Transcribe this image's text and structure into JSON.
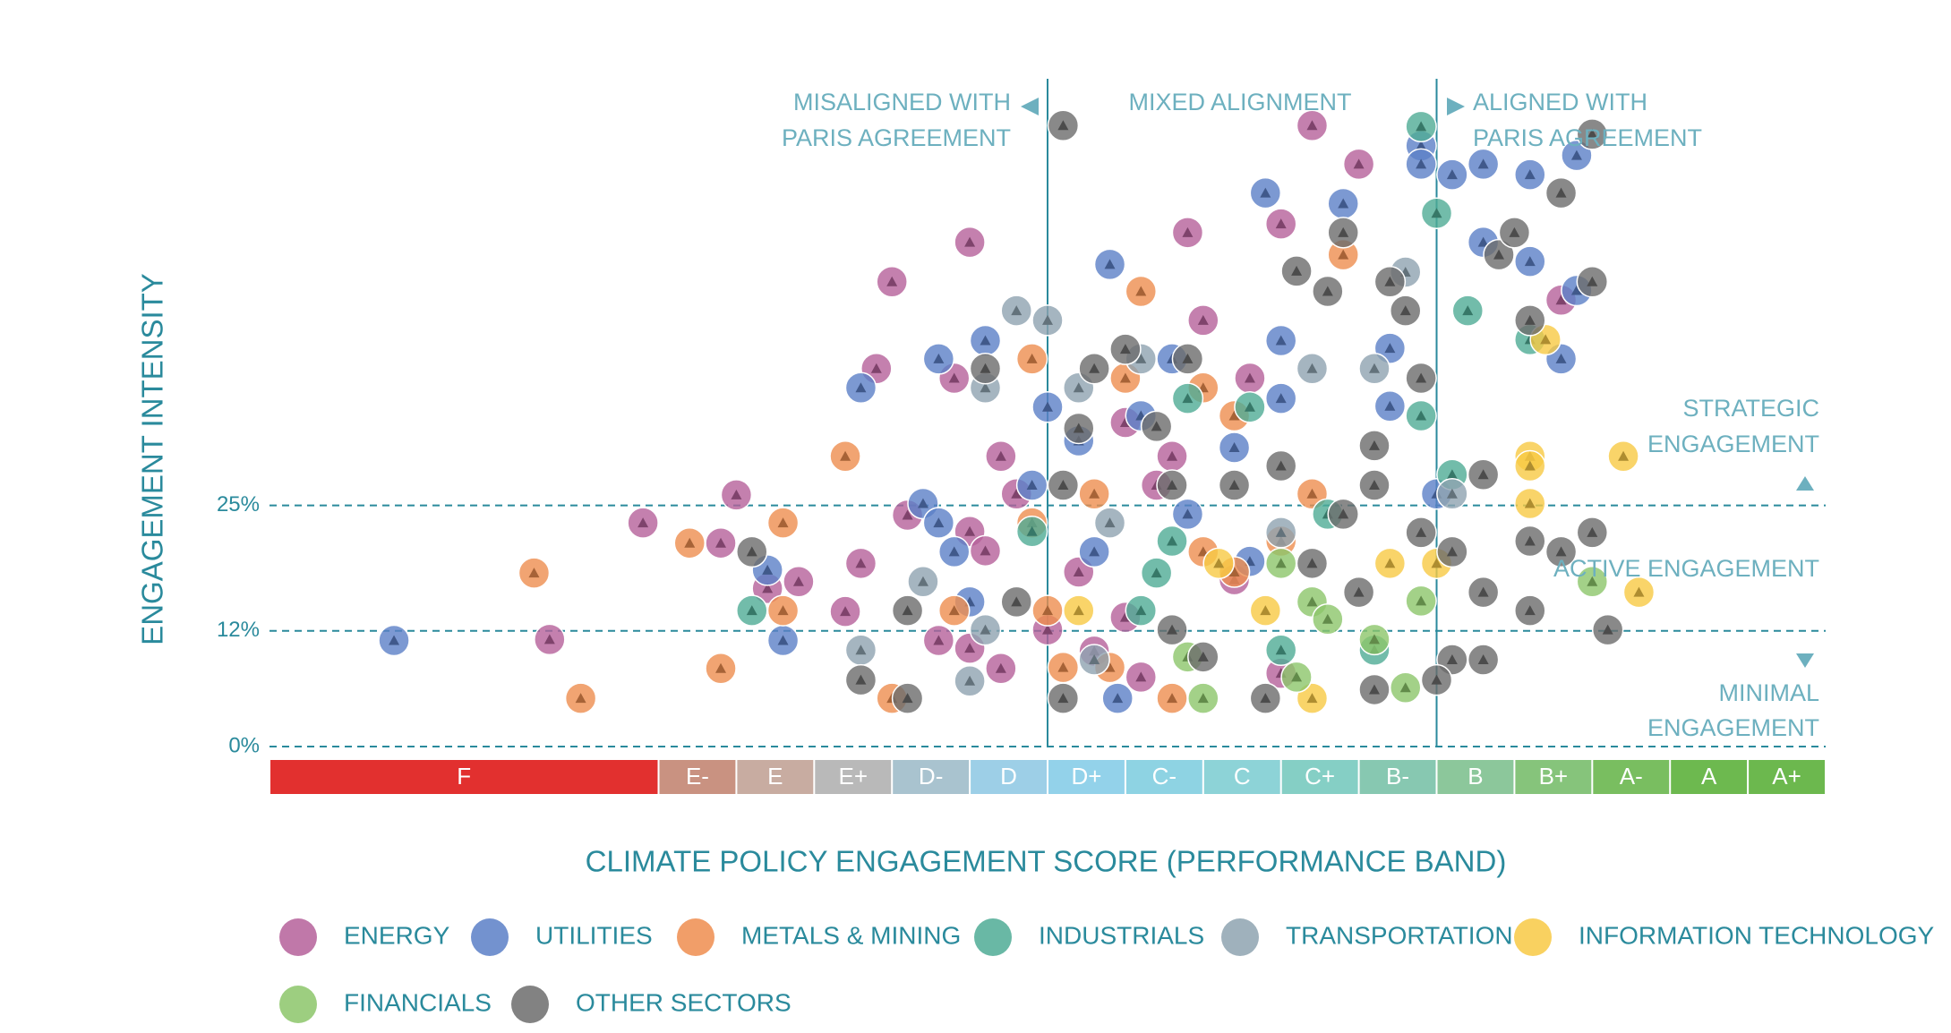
{
  "chart_data": {
    "type": "scatter",
    "x_title": "CLIMATE POLICY ENGAGEMENT SCORE (PERFORMANCE BAND)",
    "y_title": "ENGAGEMENT INTENSITY",
    "xlim": [
      0,
      20
    ],
    "ylim": [
      0,
      66
    ],
    "yticks": [
      {
        "value": 0,
        "label": "0%"
      },
      {
        "value": 12,
        "label": "12%"
      },
      {
        "value": 25,
        "label": "25%"
      }
    ],
    "grid": true,
    "dividers": [
      10,
      15
    ],
    "annotations": {
      "misaligned": [
        "MISALIGNED WITH",
        "PARIS AGREEMENT"
      ],
      "mixed": "MIXED ALIGNMENT",
      "aligned": [
        "ALIGNED WITH",
        "PARIS AGREEMENT"
      ],
      "strategic": [
        "STRATEGIC",
        "ENGAGEMENT"
      ],
      "active": "ACTIVE ENGAGEMENT",
      "minimal": [
        "MINIMAL",
        "ENGAGEMENT"
      ]
    },
    "bands": [
      {
        "label": "F",
        "from": 0,
        "to": 5,
        "color": "#e2302f"
      },
      {
        "label": "E-",
        "from": 5,
        "to": 6,
        "color": "#c99281"
      },
      {
        "label": "E",
        "from": 6,
        "to": 7,
        "color": "#c8aca1"
      },
      {
        "label": "E+",
        "from": 7,
        "to": 8,
        "color": "#b9b9b9"
      },
      {
        "label": "D-",
        "from": 8,
        "to": 9,
        "color": "#a9c3cf"
      },
      {
        "label": "D",
        "from": 9,
        "to": 10,
        "color": "#9dcfe7"
      },
      {
        "label": "D+",
        "from": 10,
        "to": 11,
        "color": "#93d2ea"
      },
      {
        "label": "C-",
        "from": 11,
        "to": 12,
        "color": "#8ed3e3"
      },
      {
        "label": "C",
        "from": 12,
        "to": 13,
        "color": "#8dd3d7"
      },
      {
        "label": "C+",
        "from": 13,
        "to": 14,
        "color": "#85cfc5"
      },
      {
        "label": "B-",
        "from": 14,
        "to": 15,
        "color": "#87c8b1"
      },
      {
        "label": "B",
        "from": 15,
        "to": 16,
        "color": "#8cc79b"
      },
      {
        "label": "B+",
        "from": 16,
        "to": 17,
        "color": "#86c47b"
      },
      {
        "label": "A-",
        "from": 17,
        "to": 18,
        "color": "#79be60"
      },
      {
        "label": "A",
        "from": 18,
        "to": 19,
        "color": "#6db94f"
      },
      {
        "label": "A+",
        "from": 19,
        "to": 20,
        "color": "#6cb84e"
      }
    ],
    "series": [
      {
        "name": "ENERGY",
        "color": "#b5609a",
        "x": [
          4.8,
          6.0,
          5.8,
          3.6,
          6.4,
          6.8,
          7.4,
          7.6,
          8.0,
          7.8,
          9.0,
          8.2,
          8.8,
          9.0,
          9.2,
          9.4,
          9.6,
          8.6,
          9.0,
          9.4,
          10.4,
          10.6,
          11.0,
          11.6,
          11.8,
          12.0,
          11.4,
          12.6,
          13.0,
          13.4,
          14.0,
          16.6,
          11.0,
          11.2,
          10.0,
          12.4,
          13.0
        ],
        "values": [
          23.2,
          26.1,
          21.1,
          11.1,
          16.4,
          17.1,
          14.0,
          19.0,
          48.2,
          39.2,
          52.3,
          24.0,
          38.2,
          22.3,
          20.3,
          30.1,
          26.2,
          11.0,
          10.2,
          8.1,
          18.1,
          9.9,
          33.6,
          30.1,
          53.3,
          44.2,
          27.1,
          38.2,
          54.2,
          64.4,
          60.4,
          46.3,
          13.4,
          7.2,
          12.1,
          17.3,
          7.6
        ]
      },
      {
        "name": "UTILITIES",
        "color": "#5b7fc7",
        "x": [
          1.6,
          6.4,
          6.6,
          7.6,
          8.6,
          9.2,
          8.4,
          8.6,
          8.8,
          9.0,
          9.8,
          10.0,
          10.4,
          10.8,
          10.6,
          11.2,
          11.6,
          11.8,
          12.4,
          12.8,
          13.0,
          13.0,
          13.8,
          14.4,
          14.4,
          14.8,
          14.8,
          15.0,
          15.2,
          15.6,
          15.6,
          16.2,
          16.2,
          16.6,
          16.8,
          16.8,
          10.9,
          12.6
        ],
        "values": [
          11.0,
          18.3,
          11.0,
          37.2,
          40.2,
          42.1,
          25.2,
          23.2,
          20.2,
          15.0,
          27.1,
          35.2,
          31.7,
          50.0,
          20.2,
          34.3,
          40.2,
          24.1,
          31.0,
          57.4,
          42.1,
          36.1,
          56.3,
          41.3,
          35.3,
          62.3,
          60.4,
          26.2,
          59.3,
          60.4,
          52.3,
          59.3,
          50.3,
          40.2,
          61.3,
          47.3,
          5.0,
          19.2
        ]
      },
      {
        "name": "METALS & MINING",
        "color": "#ee8d4f",
        "x": [
          3.4,
          4.0,
          5.4,
          5.8,
          6.6,
          6.6,
          7.4,
          8.0,
          8.8,
          9.8,
          10.0,
          9.8,
          10.2,
          10.6,
          11.0,
          11.2,
          12.0,
          12.4,
          12.0,
          13.0,
          13.4,
          13.8,
          10.8,
          11.6,
          12.4
        ],
        "values": [
          18.0,
          5.0,
          21.1,
          8.1,
          23.2,
          14.1,
          30.1,
          5.0,
          14.1,
          40.2,
          14.1,
          23.2,
          8.2,
          26.2,
          38.2,
          47.2,
          37.2,
          34.3,
          20.2,
          21.3,
          26.2,
          51.0,
          8.2,
          5.0,
          18.1
        ]
      },
      {
        "name": "INDUSTRIALS",
        "color": "#4fab95",
        "x": [
          6.2,
          9.8,
          11.2,
          11.4,
          11.8,
          12.6,
          13.0,
          13.6,
          14.8,
          14.8,
          15.0,
          15.2,
          15.4,
          16.2,
          14.2,
          11.6
        ],
        "values": [
          14.1,
          22.3,
          14.1,
          18.0,
          36.1,
          35.2,
          10.0,
          24.1,
          64.3,
          34.3,
          55.3,
          28.2,
          45.2,
          42.2,
          10.0,
          21.3
        ]
      },
      {
        "name": "TRANSPORTATION",
        "color": "#8ea3b0",
        "x": [
          7.6,
          8.4,
          9.0,
          9.6,
          9.2,
          10.0,
          10.4,
          10.8,
          10.6,
          11.2,
          13.0,
          13.4,
          14.2,
          14.6,
          15.2,
          9.2
        ],
        "values": [
          10.0,
          17.1,
          6.8,
          45.2,
          37.2,
          44.2,
          37.2,
          23.2,
          9.0,
          40.2,
          22.2,
          39.2,
          39.2,
          49.2,
          26.2,
          12.1
        ]
      },
      {
        "name": "INFORMATION TECHNOLOGY",
        "color": "#f8c944",
        "x": [
          12.8,
          13.4,
          14.4,
          15.0,
          16.2,
          16.2,
          16.2,
          16.4,
          17.4,
          17.6,
          12.2,
          10.4
        ],
        "values": [
          14.1,
          5.0,
          19.0,
          19.0,
          30.1,
          29.1,
          25.2,
          42.2,
          30.1,
          16.0,
          19.0,
          14.1
        ]
      },
      {
        "name": "FINANCIALS",
        "color": "#8cc66a",
        "x": [
          12.0,
          13.4,
          13.6,
          13.2,
          14.2,
          14.6,
          14.8,
          17.0,
          13.0,
          11.8
        ],
        "values": [
          5.0,
          15.0,
          13.2,
          7.2,
          11.1,
          6.1,
          15.1,
          17.1,
          19.0,
          9.3
        ]
      },
      {
        "name": "OTHER SECTORS",
        "color": "#6c6c6c",
        "x": [
          10.2,
          6.2,
          7.6,
          8.2,
          8.2,
          9.2,
          9.6,
          10.2,
          10.4,
          10.6,
          11.0,
          11.4,
          11.6,
          11.8,
          12.4,
          12.8,
          13.0,
          13.2,
          13.6,
          13.8,
          13.4,
          14.0,
          14.2,
          14.2,
          14.4,
          14.6,
          14.8,
          14.8,
          15.2,
          15.2,
          15.6,
          15.6,
          15.6,
          15.8,
          16.0,
          16.2,
          16.2,
          16.2,
          16.6,
          16.6,
          17.0,
          17.0,
          17.0,
          17.2,
          11.6,
          12.0,
          10.2,
          14.2,
          15.0,
          13.8
        ],
        "values": [
          64.4,
          20.2,
          6.9,
          5.0,
          14.1,
          39.2,
          15.0,
          27.1,
          33.0,
          39.2,
          41.2,
          33.2,
          27.1,
          40.2,
          27.1,
          5.0,
          29.1,
          49.3,
          47.2,
          53.3,
          19.0,
          16.0,
          27.1,
          31.2,
          48.2,
          45.2,
          38.2,
          22.2,
          20.2,
          9.0,
          28.2,
          16.0,
          9.0,
          51.0,
          53.3,
          44.2,
          21.3,
          14.1,
          20.2,
          57.4,
          22.2,
          48.2,
          63.5,
          12.1,
          12.1,
          9.3,
          5.0,
          5.9,
          6.9,
          24.1
        ]
      }
    ]
  }
}
